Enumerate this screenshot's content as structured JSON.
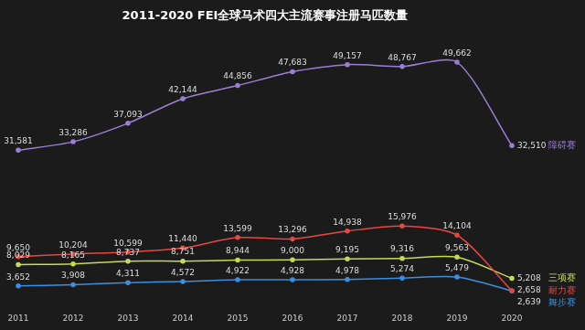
{
  "chart_data": {
    "type": "line",
    "title": "2011-2020 FEI全球马术四大主流赛事注册马匹数量",
    "categories": [
      "2011",
      "2012",
      "2013",
      "2014",
      "2015",
      "2016",
      "2017",
      "2018",
      "2019",
      "2020"
    ],
    "series": [
      {
        "name": "障碍赛",
        "color": "#9b7fd4",
        "values": [
          31581,
          33286,
          37093,
          42144,
          44856,
          47683,
          49157,
          48767,
          49662,
          32510
        ],
        "value_labels": [
          "31,581",
          "33,286",
          "37,093",
          "42,144",
          "44,856",
          "47,683",
          "49,157",
          "48,767",
          "49,662",
          "32,510"
        ]
      },
      {
        "name": "耐力赛",
        "color": "#e8473f",
        "values": [
          9650,
          10204,
          10599,
          11440,
          13599,
          13296,
          14938,
          15976,
          14104,
          2658
        ],
        "value_labels": [
          "9,650",
          "10,204",
          "10,599",
          "11,440",
          "13,599",
          "13,296",
          "14,938",
          "15,976",
          "14,104",
          "2,658"
        ]
      },
      {
        "name": "三项赛",
        "color": "#c8d957",
        "values": [
          8029,
          8165,
          8737,
          8751,
          8944,
          9000,
          9195,
          9316,
          9563,
          5208
        ],
        "value_labels": [
          "8,029",
          "8,165",
          "8,737",
          "8,751",
          "8,944",
          "9,000",
          "9,195",
          "9,316",
          "9,563",
          "5,208"
        ]
      },
      {
        "name": "舞步赛",
        "color": "#3d8fe0",
        "values": [
          3652,
          3908,
          4311,
          4572,
          4922,
          4928,
          4978,
          5274,
          5479,
          2639
        ],
        "value_labels": [
          "3,652",
          "3,908",
          "4,311",
          "4,572",
          "4,922",
          "4,928",
          "4,978",
          "5,274",
          "5,479",
          "2,639"
        ]
      }
    ],
    "ylim": [
      0,
      55000
    ],
    "grid": false,
    "tick_labels": "x",
    "data_labels": true,
    "legend": "right"
  }
}
